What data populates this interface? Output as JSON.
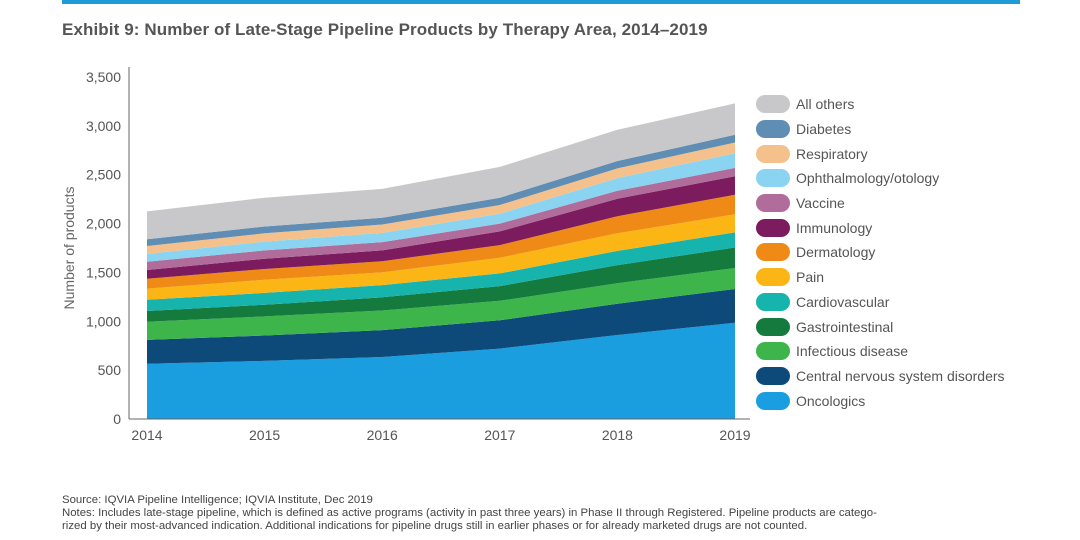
{
  "header": {
    "title": "Exhibit 9: Number of Late-Stage Pipeline Products by Therapy Area, 2014–2019"
  },
  "footer": {
    "source": "Source: IQVIA Pipeline Intelligence; IQVIA Institute, Dec 2019",
    "notes_line1": "Notes: Includes late-stage pipeline, which is defined as active programs (activity in past three years) in Phase II through Registered. Pipeline products are catego-",
    "notes_line2": "rized by their most-advanced indication. Additional indications for pipeline drugs still in earlier phases or for already marketed drugs are not counted."
  },
  "chart_data": {
    "type": "area",
    "stacked": true,
    "title": "Exhibit 9: Number of Late-Stage Pipeline Products by Therapy Area, 2014–2019",
    "xlabel": "",
    "ylabel": "Number of products",
    "categories": [
      "2014",
      "2015",
      "2016",
      "2017",
      "2018",
      "2019"
    ],
    "ylim": [
      0,
      3500
    ],
    "yticks": [
      0,
      500,
      1000,
      1500,
      2000,
      2500,
      3000,
      3500
    ],
    "ytick_labels": [
      "0",
      "500",
      "1,000",
      "1,500",
      "2,000",
      "2,500",
      "3,000",
      "3,500"
    ],
    "grid": false,
    "legend_position": "right",
    "series": [
      {
        "name": "Oncologics",
        "color": "#1a9ee0",
        "values": [
          565,
          595,
          635,
          720,
          860,
          985
        ]
      },
      {
        "name": "Central nervous system disorders",
        "color": "#0d4a7a",
        "values": [
          245,
          260,
          275,
          290,
          320,
          345
        ]
      },
      {
        "name": "Infectious disease",
        "color": "#3db54a",
        "values": [
          185,
          195,
          200,
          200,
          210,
          215
        ]
      },
      {
        "name": "Gastrointestinal",
        "color": "#147a3e",
        "values": [
          110,
          120,
          135,
          150,
          185,
          210
        ]
      },
      {
        "name": "Cardiovascular",
        "color": "#17b3ad",
        "values": [
          115,
          120,
          125,
          130,
          145,
          155
        ]
      },
      {
        "name": "Pain",
        "color": "#fbb616",
        "values": [
          115,
          135,
          130,
          160,
          180,
          185
        ]
      },
      {
        "name": "Dermatology",
        "color": "#f08a17",
        "values": [
          100,
          110,
          115,
          130,
          175,
          200
        ]
      },
      {
        "name": "Immunology",
        "color": "#7c1b5e",
        "values": [
          90,
          105,
          110,
          140,
          180,
          190
        ]
      },
      {
        "name": "Vaccine",
        "color": "#b06c9a",
        "values": [
          85,
          85,
          85,
          80,
          80,
          85
        ]
      },
      {
        "name": "Ophthalmology/otology",
        "color": "#8bd4f1",
        "values": [
          80,
          90,
          95,
          100,
          130,
          150
        ]
      },
      {
        "name": "Respiratory",
        "color": "#f4c18c",
        "values": [
          80,
          85,
          85,
          90,
          100,
          110
        ]
      },
      {
        "name": "Diabetes",
        "color": "#5f8db3",
        "values": [
          70,
          70,
          70,
          75,
          75,
          80
        ]
      },
      {
        "name": "All others",
        "color": "#c8c8ca",
        "values": [
          285,
          295,
          295,
          315,
          320,
          320
        ]
      }
    ]
  }
}
